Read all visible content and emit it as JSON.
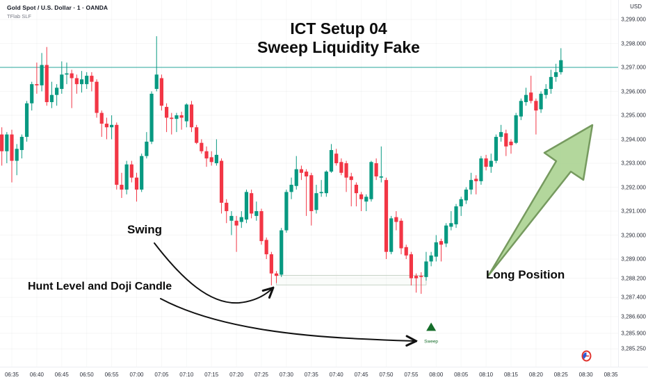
{
  "header": {
    "symbol_title": "Gold Spot / U.S. Dollar · 1 · OANDA",
    "indicator": "TFlab SLF"
  },
  "annotations": {
    "title_line1": "ICT Setup 04",
    "title_line2": "Sweep Liquidity Fake",
    "swing": "Swing",
    "hunt": "Hunt Level and Doji Candle",
    "long_position": "Long Position",
    "sweep": "Sweep"
  },
  "axis": {
    "currency": "USD",
    "price_labels": [
      "3,299.000",
      "3,298.000",
      "3,297.000",
      "3,296.000",
      "3,295.000",
      "3,294.000",
      "3,293.000",
      "3,292.000",
      "3,291.000",
      "3,290.000",
      "3,289.000",
      "3,288.200",
      "3,287.400",
      "3,286.600",
      "3,285.900",
      "3,285.250"
    ],
    "time_labels": [
      "06:35",
      "06:40",
      "06:45",
      "06:50",
      "06:55",
      "07:00",
      "07:05",
      "07:10",
      "07:15",
      "07:20",
      "07:25",
      "07:30",
      "07:35",
      "07:40",
      "07:45",
      "07:50",
      "07:55",
      "08:00",
      "08:05",
      "08:10",
      "08:15",
      "08:20",
      "08:25",
      "08:30",
      "08:35"
    ]
  },
  "colors": {
    "up": "#089981",
    "down": "#f23645",
    "price_line": "#26a69a",
    "hunt_box_border": "#c7d3c7",
    "sweep_green": "#156d2a",
    "arrow_fill": "#a9d18e",
    "arrow_stroke": "#769a5f",
    "annotation_ink": "#111111",
    "event_icon_red": "#e0342f",
    "event_icon_blue": "#2a5bd7"
  },
  "chart_data": {
    "type": "candlestick",
    "symbol": "Gold Spot / U.S. Dollar",
    "interval": "1 minute",
    "start_time": "06:33",
    "price_line_value": 3297.0,
    "ylim": [
      3285.25,
      3299.0
    ],
    "hunt_box": {
      "time_from": "07:28",
      "time_to": "07:58",
      "price_top": 3288.32,
      "price_bottom": 3287.92
    },
    "sweep_marker": {
      "time": "07:59",
      "price": 3286.15
    },
    "candles": [
      [
        3294.2,
        3294.5,
        3292.9,
        3293.5
      ],
      [
        3293.5,
        3294.3,
        3293.0,
        3294.2
      ],
      [
        3294.2,
        3294.4,
        3292.2,
        3293.1
      ],
      [
        3293.1,
        3293.8,
        3292.5,
        3293.6
      ],
      [
        3293.55,
        3294.2,
        3293.2,
        3294.1
      ],
      [
        3294.1,
        3295.6,
        3293.9,
        3295.5
      ],
      [
        3295.5,
        3296.4,
        3295.2,
        3296.3
      ],
      [
        3296.3,
        3297.2,
        3295.9,
        3296.25
      ],
      [
        3296.25,
        3297.6,
        3296.0,
        3297.1
      ],
      [
        3297.1,
        3297.85,
        3295.4,
        3295.55
      ],
      [
        3295.55,
        3296.4,
        3295.3,
        3295.85
      ],
      [
        3295.85,
        3296.3,
        3295.4,
        3296.15
      ],
      [
        3296.1,
        3297.25,
        3295.9,
        3296.7
      ],
      [
        3296.7,
        3297.2,
        3296.3,
        3296.75
      ],
      [
        3296.75,
        3296.9,
        3295.3,
        3296.55
      ],
      [
        3296.55,
        3296.7,
        3295.9,
        3296.3
      ],
      [
        3296.3,
        3296.85,
        3295.95,
        3296.5
      ],
      [
        3296.3,
        3296.8,
        3296.1,
        3296.65
      ],
      [
        3296.65,
        3296.8,
        3296.0,
        3296.4
      ],
      [
        3296.4,
        3296.5,
        3294.9,
        3295.1
      ],
      [
        3295.1,
        3295.2,
        3294.1,
        3294.65
      ],
      [
        3294.65,
        3294.9,
        3294.0,
        3294.5
      ],
      [
        3294.5,
        3295.0,
        3294.0,
        3294.6
      ],
      [
        3294.6,
        3294.7,
        3291.9,
        3292.1
      ],
      [
        3292.1,
        3292.6,
        3291.55,
        3291.9
      ],
      [
        3291.9,
        3293.1,
        3291.7,
        3292.95
      ],
      [
        3292.95,
        3293.1,
        3292.2,
        3292.4
      ],
      [
        3292.4,
        3292.6,
        3291.4,
        3291.9
      ],
      [
        3291.9,
        3293.4,
        3291.8,
        3293.3
      ],
      [
        3293.3,
        3294.3,
        3293.2,
        3293.9
      ],
      [
        3293.9,
        3296.0,
        3293.8,
        3295.9
      ],
      [
        3296.1,
        3298.3,
        3296.0,
        3296.7
      ],
      [
        3296.55,
        3296.7,
        3295.2,
        3295.4
      ],
      [
        3295.35,
        3295.5,
        3294.3,
        3294.9
      ],
      [
        3294.9,
        3295.1,
        3294.2,
        3294.85
      ],
      [
        3294.85,
        3295.1,
        3294.3,
        3295.0
      ],
      [
        3295.0,
        3295.15,
        3294.4,
        3294.9
      ],
      [
        3294.75,
        3295.5,
        3294.5,
        3295.45
      ],
      [
        3295.45,
        3295.6,
        3294.3,
        3294.5
      ],
      [
        3294.5,
        3294.6,
        3293.8,
        3293.85
      ],
      [
        3293.85,
        3294.0,
        3293.4,
        3293.5
      ],
      [
        3293.5,
        3293.7,
        3292.85,
        3293.2
      ],
      [
        3293.25,
        3293.5,
        3292.9,
        3293.05
      ],
      [
        3293.0,
        3294.0,
        3292.9,
        3293.35
      ],
      [
        3293.1,
        3293.2,
        3290.9,
        3291.35
      ],
      [
        3291.35,
        3291.5,
        3290.5,
        3291.0
      ],
      [
        3290.6,
        3291.0,
        3290.0,
        3290.8
      ],
      [
        3290.6,
        3290.8,
        3289.3,
        3290.4
      ],
      [
        3290.55,
        3291.0,
        3290.3,
        3290.75
      ],
      [
        3290.65,
        3291.9,
        3290.5,
        3291.8
      ],
      [
        3291.75,
        3291.9,
        3290.7,
        3290.9
      ],
      [
        3290.8,
        3291.4,
        3290.6,
        3291.0
      ],
      [
        3291.0,
        3291.1,
        3289.6,
        3289.75
      ],
      [
        3289.8,
        3289.9,
        3289.0,
        3289.2
      ],
      [
        3289.2,
        3289.3,
        3287.9,
        3288.4
      ],
      [
        3288.4,
        3288.5,
        3288.0,
        3288.3
      ],
      [
        3288.35,
        3290.3,
        3288.25,
        3290.2
      ],
      [
        3290.2,
        3291.9,
        3290.1,
        3291.8
      ],
      [
        3291.8,
        3292.4,
        3291.5,
        3292.1
      ],
      [
        3292.05,
        3293.3,
        3291.9,
        3292.75
      ],
      [
        3292.75,
        3292.9,
        3292.3,
        3292.6
      ],
      [
        3292.65,
        3292.75,
        3290.8,
        3292.45
      ],
      [
        3292.5,
        3292.6,
        3290.4,
        3291.0
      ],
      [
        3291.05,
        3292.1,
        3290.9,
        3291.75
      ],
      [
        3291.75,
        3292.3,
        3291.6,
        3291.8
      ],
      [
        3291.75,
        3292.7,
        3291.6,
        3292.65
      ],
      [
        3292.65,
        3293.8,
        3292.6,
        3293.55
      ],
      [
        3293.4,
        3293.6,
        3292.9,
        3293.0
      ],
      [
        3293.05,
        3293.2,
        3292.5,
        3292.6
      ],
      [
        3293.0,
        3293.1,
        3291.8,
        3292.4
      ],
      [
        3292.45,
        3292.6,
        3291.2,
        3292.3
      ],
      [
        3292.1,
        3292.2,
        3291.2,
        3291.75
      ],
      [
        3291.7,
        3291.8,
        3291.0,
        3291.5
      ],
      [
        3291.4,
        3291.7,
        3291.0,
        3291.6
      ],
      [
        3291.5,
        3293.1,
        3291.4,
        3293.05
      ],
      [
        3293.0,
        3293.2,
        3292.3,
        3292.45
      ],
      [
        3292.4,
        3293.7,
        3292.2,
        3292.45
      ],
      [
        3292.3,
        3292.4,
        3289.0,
        3289.3
      ],
      [
        3289.3,
        3290.8,
        3289.2,
        3290.7
      ],
      [
        3290.75,
        3291.0,
        3290.2,
        3290.55
      ],
      [
        3290.6,
        3290.7,
        3289.2,
        3289.45
      ],
      [
        3289.5,
        3289.6,
        3289.0,
        3289.15
      ],
      [
        3289.2,
        3289.3,
        3287.9,
        3288.2
      ],
      [
        3288.3,
        3288.4,
        3287.6,
        3288.2
      ],
      [
        3288.3,
        3288.45,
        3287.55,
        3288.25
      ],
      [
        3288.25,
        3289.3,
        3288.1,
        3288.9
      ],
      [
        3288.9,
        3289.3,
        3288.7,
        3289.15
      ],
      [
        3289.1,
        3290.0,
        3288.9,
        3289.7
      ],
      [
        3289.75,
        3289.85,
        3288.9,
        3289.6
      ],
      [
        3289.65,
        3290.5,
        3289.5,
        3290.4
      ],
      [
        3290.35,
        3291.0,
        3290.2,
        3290.5
      ],
      [
        3290.45,
        3291.3,
        3290.3,
        3291.2
      ],
      [
        3291.2,
        3291.6,
        3290.8,
        3291.5
      ],
      [
        3291.45,
        3292.0,
        3291.3,
        3291.9
      ],
      [
        3291.9,
        3292.6,
        3291.7,
        3292.3
      ],
      [
        3292.35,
        3292.5,
        3291.7,
        3292.25
      ],
      [
        3292.25,
        3293.3,
        3292.1,
        3293.2
      ],
      [
        3293.2,
        3293.35,
        3292.7,
        3292.85
      ],
      [
        3292.85,
        3293.4,
        3292.6,
        3293.1
      ],
      [
        3293.1,
        3294.2,
        3293.0,
        3294.1
      ],
      [
        3294.1,
        3294.6,
        3293.9,
        3294.3
      ],
      [
        3294.25,
        3294.4,
        3293.3,
        3293.7
      ],
      [
        3293.9,
        3294.0,
        3293.4,
        3293.75
      ],
      [
        3293.85,
        3295.1,
        3293.8,
        3295.0
      ],
      [
        3294.95,
        3295.7,
        3294.8,
        3295.6
      ],
      [
        3295.55,
        3296.15,
        3295.4,
        3295.85
      ],
      [
        3295.95,
        3296.65,
        3295.5,
        3295.6
      ],
      [
        3295.6,
        3295.7,
        3294.2,
        3295.2
      ],
      [
        3295.25,
        3296.0,
        3295.1,
        3295.9
      ],
      [
        3295.85,
        3296.3,
        3295.7,
        3296.1
      ],
      [
        3296.1,
        3296.9,
        3295.9,
        3296.6
      ],
      [
        3296.6,
        3297.15,
        3296.4,
        3296.8
      ],
      [
        3296.8,
        3297.8,
        3296.7,
        3297.3
      ]
    ]
  }
}
